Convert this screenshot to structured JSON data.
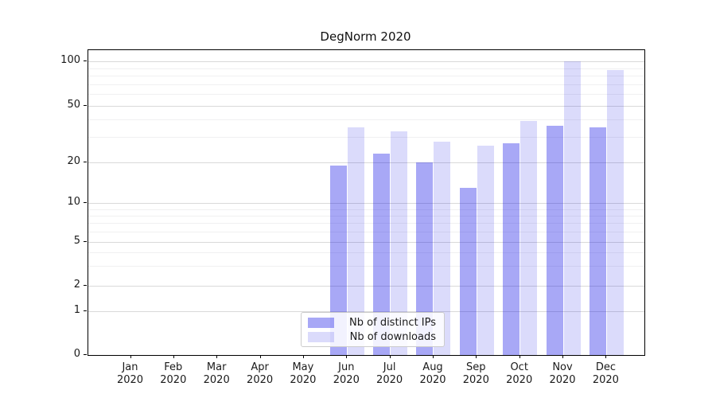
{
  "chart_data": {
    "type": "bar",
    "title": "DegNorm 2020",
    "categories": [
      "Jan 2020",
      "Feb 2020",
      "Mar 2020",
      "Apr 2020",
      "May 2020",
      "Jun 2020",
      "Jul 2020",
      "Aug 2020",
      "Sep 2020",
      "Oct 2020",
      "Nov 2020",
      "Dec 2020"
    ],
    "series": [
      {
        "name": "Nb of distinct IPs",
        "color": "rgba(0,0,230,0.34)",
        "values": [
          null,
          null,
          null,
          null,
          null,
          19,
          23,
          20,
          13,
          27,
          36,
          35
        ]
      },
      {
        "name": "Nb of downloads",
        "color": "rgba(0,0,230,0.14)",
        "values": [
          null,
          null,
          null,
          null,
          null,
          35,
          33,
          28,
          26,
          39,
          100,
          87
        ]
      }
    ],
    "xlabel": "",
    "ylabel": "",
    "ylim": [
      0,
      109
    ],
    "yscale": "symlog (linear 0-1, logarithmic above 1)",
    "yticks": [
      0,
      1,
      2,
      5,
      10,
      20,
      50,
      100
    ],
    "yticks_minor": [
      3,
      4,
      6,
      7,
      8,
      9,
      30,
      40,
      60,
      70,
      80,
      90
    ],
    "yscale_anchors": [
      [
        0,
        0
      ],
      [
        1,
        0.1491
      ],
      [
        2,
        0.2366
      ],
      [
        5,
        0.3856
      ],
      [
        10,
        0.5168
      ],
      [
        20,
        0.6567
      ],
      [
        50,
        0.8491
      ],
      [
        100,
        1.0
      ]
    ],
    "grid": "horizontal, major and minor, on",
    "legend_position": "lower center"
  },
  "colors": {
    "background": "#ffffff",
    "spine": "#000000",
    "grid_major": "#d9d9d9",
    "grid_minor": "#f0f0f1",
    "text": "#1a1a1a",
    "bar_distinct_ips": "rgba(0,0,230,0.34)",
    "bar_downloads": "rgba(0,0,230,0.14)"
  }
}
